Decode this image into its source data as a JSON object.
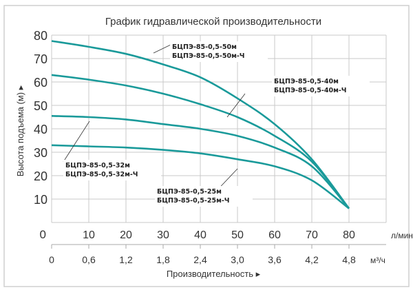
{
  "chart_data": {
    "type": "line",
    "title": "График гидравлической производительности",
    "ylabel": "Высота подъема (м) ▸",
    "xlabel": "Производительность ▸",
    "x_unit": "л/мин",
    "x2_unit": "м³/ч",
    "xlim": [
      0,
      90
    ],
    "ylim": [
      0,
      80
    ],
    "grid": true,
    "x_ticks": [
      10,
      20,
      30,
      40,
      50,
      60,
      70,
      80
    ],
    "y_ticks": [
      10,
      20,
      30,
      40,
      50,
      60,
      70,
      80
    ],
    "origin_label": "0",
    "x2_ticks": [
      "0",
      "0,6",
      "1,2",
      "1,8",
      "2,4",
      "3,0",
      "3,6",
      "4,2",
      "4,8"
    ],
    "color": "#1a9a9a",
    "x": [
      0,
      10,
      20,
      30,
      40,
      50,
      60,
      70,
      80
    ],
    "series": [
      {
        "name": "БЦПЭ-85-0,5-50м / БЦПЭ-85-0,5-50м-Ч",
        "label_lines": [
          "БЦПЭ-85-0,5-50м",
          "БЦПЭ-85-0,5-50м-Ч"
        ],
        "values": [
          77.5,
          75,
          72,
          67.5,
          62,
          53,
          42,
          27,
          6
        ]
      },
      {
        "name": "БЦПЭ-85-0,5-40м / БЦПЭ-85-0,5-40м-Ч",
        "label_lines": [
          "БЦПЭ-85-0,5-40м",
          "БЦПЭ-85-0,5-40м-Ч"
        ],
        "values": [
          63,
          61,
          58.5,
          55,
          50.5,
          45,
          37,
          26,
          6
        ]
      },
      {
        "name": "БЦПЭ-85-0,5-32м / БЦПЭ-85-0,5-32м-Ч",
        "label_lines": [
          "БЦПЭ-85-0,5-32м",
          "БЦПЭ-85-0,5-32м-Ч"
        ],
        "values": [
          45.5,
          45,
          44,
          42,
          40,
          37,
          32,
          24,
          6
        ]
      },
      {
        "name": "БЦПЭ-85-0,5-25м / БЦПЭ-85-0,5-25м-Ч",
        "label_lines": [
          "БЦПЭ-85-0,5-25м",
          "БЦПЭ-85-0,5-25м-Ч"
        ],
        "values": [
          33,
          32.5,
          32,
          31,
          29.5,
          27,
          24,
          18,
          6
        ]
      }
    ]
  }
}
